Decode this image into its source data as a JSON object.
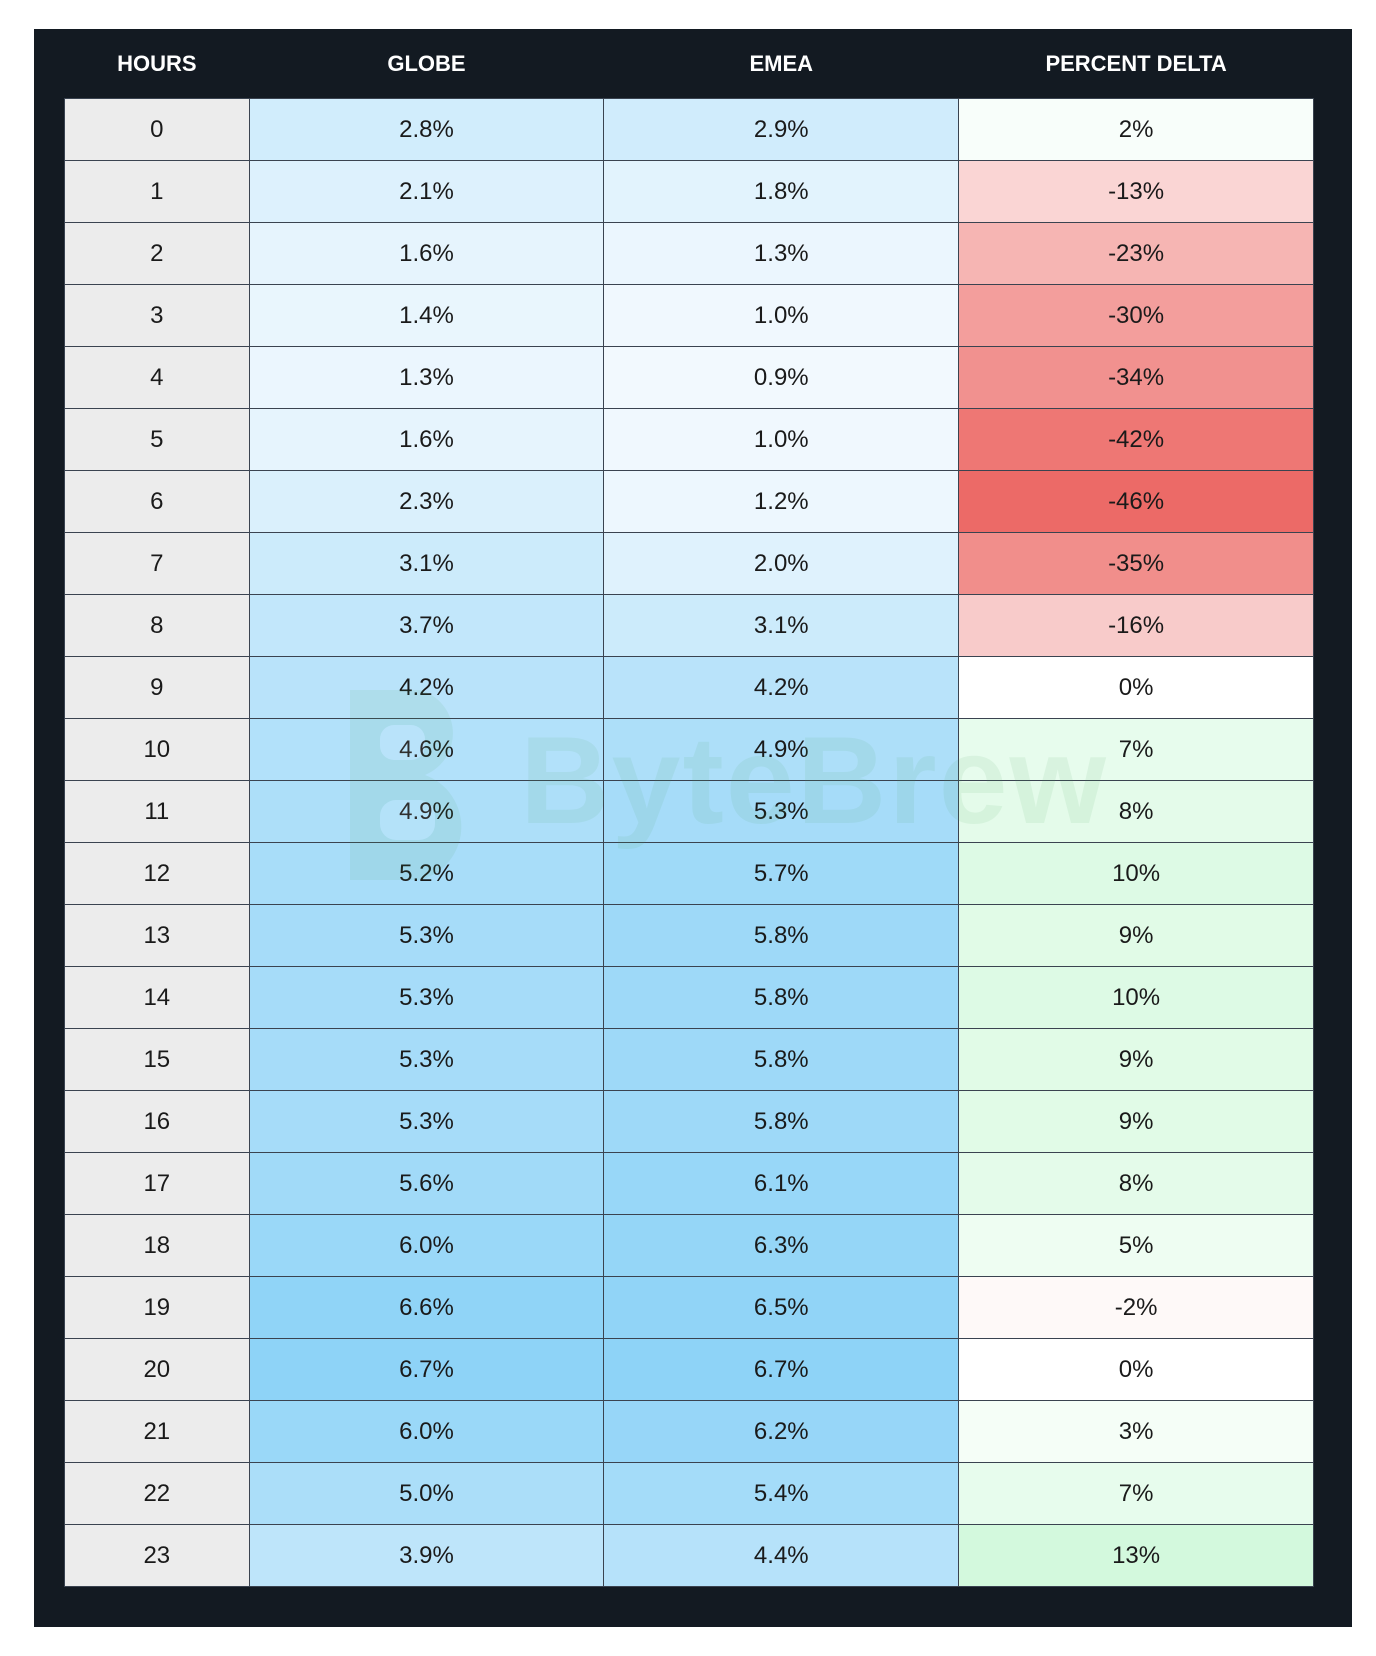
{
  "chart_data": {
    "type": "table",
    "columns": [
      "HOURS",
      "GLOBE",
      "EMEA",
      "PERCENT DELTA"
    ],
    "hours": [
      0,
      1,
      2,
      3,
      4,
      5,
      6,
      7,
      8,
      9,
      10,
      11,
      12,
      13,
      14,
      15,
      16,
      17,
      18,
      19,
      20,
      21,
      22,
      23
    ],
    "globe": [
      2.8,
      2.1,
      1.6,
      1.4,
      1.3,
      1.6,
      2.3,
      3.1,
      3.7,
      4.2,
      4.6,
      4.9,
      5.2,
      5.3,
      5.3,
      5.3,
      5.3,
      5.6,
      6.0,
      6.6,
      6.7,
      6.0,
      5.0,
      3.9
    ],
    "emea": [
      2.9,
      1.8,
      1.3,
      1.0,
      0.9,
      1.0,
      1.2,
      2.0,
      3.1,
      4.2,
      4.9,
      5.3,
      5.7,
      5.8,
      5.8,
      5.8,
      5.8,
      6.1,
      6.3,
      6.5,
      6.7,
      6.2,
      5.4,
      4.4
    ],
    "percent_delta": [
      2,
      -13,
      -23,
      -30,
      -34,
      -42,
      -46,
      -35,
      -16,
      0,
      7,
      8,
      10,
      9,
      10,
      9,
      9,
      8,
      5,
      -2,
      0,
      3,
      7,
      13
    ],
    "value_suffix": "%",
    "value_decimals": 1,
    "colors": {
      "frame": "#131a22",
      "hour_cell": "#ececec",
      "blue_low": "#f2f9fe",
      "blue_high": "#8ed3f7",
      "red_high": "#ec6a67",
      "green_high": "#d3f9dd",
      "neutral": "#ffffff"
    }
  },
  "watermark": {
    "text": "ByteBrew",
    "icon": "bytebrew-logo-icon"
  }
}
